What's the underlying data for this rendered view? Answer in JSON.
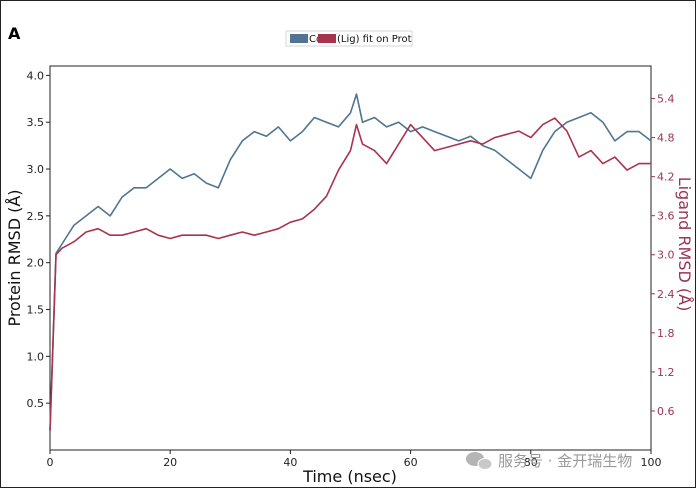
{
  "panel_label": "A",
  "legend": {
    "label_protein": "Cα",
    "label_ligand": "(Lig) fit on Prot"
  },
  "watermark": "服务号 · 金开瑞生物",
  "colors": {
    "protein": "#4f7592",
    "ligand": "#a8334f",
    "right_axis": "#9c3454"
  },
  "chart_data": {
    "type": "line",
    "title": "",
    "xlabel": "Time (nsec)",
    "ylabel": "Protein RMSD (Å)",
    "y2label": "Ligand RMSD (Å)",
    "xlim": [
      0,
      100
    ],
    "ylim": [
      0,
      4.1
    ],
    "y2lim": [
      0,
      5.9
    ],
    "xticks": [
      0,
      20,
      40,
      60,
      80,
      100
    ],
    "yticks": [
      0.5,
      1.0,
      1.5,
      2.0,
      2.5,
      3.0,
      3.5,
      4.0
    ],
    "y2ticks": [
      0.6,
      1.2,
      1.8,
      2.4,
      3.0,
      3.6,
      4.2,
      4.8,
      5.4
    ],
    "legend_position": "top-center",
    "grid": false,
    "series": [
      {
        "name": "Cα",
        "axis": "left",
        "x": [
          0,
          1,
          2,
          4,
          6,
          8,
          10,
          12,
          14,
          16,
          18,
          20,
          22,
          24,
          26,
          28,
          30,
          32,
          34,
          36,
          38,
          40,
          42,
          44,
          46,
          48,
          50,
          51,
          52,
          54,
          56,
          58,
          60,
          62,
          64,
          66,
          68,
          70,
          72,
          74,
          76,
          78,
          80,
          82,
          84,
          86,
          88,
          90,
          92,
          94,
          96,
          98,
          100
        ],
        "values": [
          0.2,
          2.1,
          2.2,
          2.4,
          2.5,
          2.6,
          2.5,
          2.7,
          2.8,
          2.8,
          2.9,
          3.0,
          2.9,
          2.95,
          2.85,
          2.8,
          3.1,
          3.3,
          3.4,
          3.35,
          3.45,
          3.3,
          3.4,
          3.55,
          3.5,
          3.45,
          3.6,
          3.8,
          3.5,
          3.55,
          3.45,
          3.5,
          3.4,
          3.45,
          3.4,
          3.35,
          3.3,
          3.35,
          3.25,
          3.2,
          3.1,
          3.0,
          2.9,
          3.2,
          3.4,
          3.5,
          3.55,
          3.6,
          3.5,
          3.3,
          3.4,
          3.4,
          3.3
        ]
      },
      {
        "name": "(Lig) fit on Prot",
        "axis": "right",
        "x": [
          0,
          1,
          2,
          4,
          6,
          8,
          10,
          12,
          14,
          16,
          18,
          20,
          22,
          24,
          26,
          28,
          30,
          32,
          34,
          36,
          38,
          40,
          42,
          44,
          46,
          48,
          50,
          51,
          52,
          54,
          56,
          58,
          60,
          62,
          64,
          66,
          68,
          70,
          72,
          74,
          76,
          78,
          80,
          82,
          84,
          86,
          88,
          90,
          92,
          94,
          96,
          98,
          100
        ],
        "values": [
          0.3,
          3.0,
          3.1,
          3.2,
          3.35,
          3.4,
          3.3,
          3.3,
          3.35,
          3.4,
          3.3,
          3.25,
          3.3,
          3.3,
          3.3,
          3.25,
          3.3,
          3.35,
          3.3,
          3.35,
          3.4,
          3.5,
          3.55,
          3.7,
          3.9,
          4.3,
          4.6,
          5.0,
          4.7,
          4.6,
          4.4,
          4.7,
          5.0,
          4.8,
          4.6,
          4.65,
          4.7,
          4.75,
          4.7,
          4.8,
          4.85,
          4.9,
          4.8,
          5.0,
          5.1,
          4.9,
          4.5,
          4.6,
          4.4,
          4.5,
          4.3,
          4.4,
          4.4
        ]
      }
    ]
  }
}
